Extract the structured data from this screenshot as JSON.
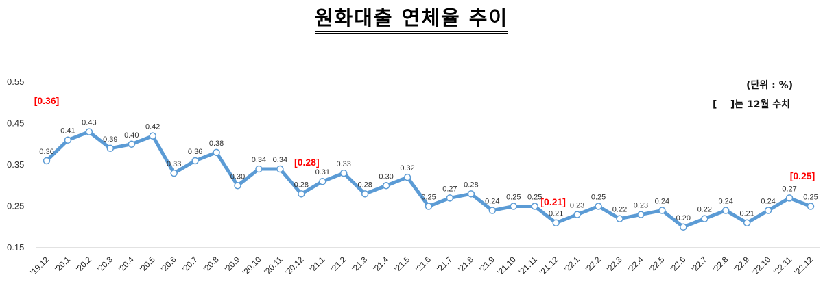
{
  "header": {
    "title": "원화대출 연체율 추이",
    "unit": "(단위 : %)",
    "note": "[    ]는 12월 수치"
  },
  "colors": {
    "line": "#5b9bd5",
    "annotation": "#ff0000",
    "gridline": "#d9d9d9"
  },
  "chart_data": {
    "type": "line",
    "title": "원화대출 연체율 추이",
    "xlabel": "",
    "ylabel": "(단위 : %)",
    "ylim": [
      0.15,
      0.55
    ],
    "yticks": [
      0.55,
      0.45,
      0.35,
      0.25,
      0.15
    ],
    "grid": false,
    "legend": null,
    "categories": [
      "'19.12",
      "'20.1",
      "'20.2",
      "'20.3",
      "'20.4",
      "'20.5",
      "'20.6",
      "'20.7",
      "'20.8",
      "'20.9",
      "'20.10",
      "'20.11",
      "'20.12",
      "'21.1",
      "'21.2",
      "'21.3",
      "'21.4",
      "'21.5",
      "'21.6",
      "'21.7",
      "'21.8",
      "'21.9",
      "'21.10",
      "'21.11",
      "'21.12",
      "'22.1",
      "'22.2",
      "'22.3",
      "'22.4",
      "'22.5",
      "'22.6",
      "'22.7",
      "'22.8",
      "'22.9",
      "'22.10",
      "'22.11",
      "'22.12"
    ],
    "series": [
      {
        "name": "원화대출 연체율",
        "values": [
          0.36,
          0.41,
          0.43,
          0.39,
          0.4,
          0.42,
          0.33,
          0.36,
          0.38,
          0.3,
          0.34,
          0.34,
          0.28,
          0.31,
          0.33,
          0.28,
          0.3,
          0.32,
          0.25,
          0.27,
          0.28,
          0.24,
          0.25,
          0.25,
          0.21,
          0.23,
          0.25,
          0.22,
          0.23,
          0.24,
          0.2,
          0.22,
          0.24,
          0.21,
          0.24,
          0.27,
          0.25
        ]
      }
    ],
    "value_labels": [
      "0.36",
      "0.41",
      "0.43",
      "0.39",
      "0.40",
      "0.42",
      "0.33",
      "0.36",
      "0.38",
      "0.30",
      "0.34",
      "0.34",
      "0.28",
      "0.31",
      "0.33",
      "0.28",
      "0.30",
      "0.32",
      "0.25",
      "0.27",
      "0.28",
      "0.24",
      "0.25",
      "0.25",
      "0.21",
      "0.23",
      "0.25",
      "0.22",
      "0.23",
      "0.24",
      "0.20",
      "0.22",
      "0.24",
      "0.21",
      "0.24",
      "0.27",
      "0.25"
    ],
    "annotations": [
      {
        "text": "[0.36]",
        "category": "'19.12",
        "note": "12월 수치"
      },
      {
        "text": "[0.28]",
        "category": "'20.12",
        "note": "12월 수치"
      },
      {
        "text": "[0.21]",
        "category": "'21.12",
        "note": "12월 수치"
      },
      {
        "text": "[0.25]",
        "category": "'22.12",
        "note": "12월 수치"
      }
    ]
  }
}
